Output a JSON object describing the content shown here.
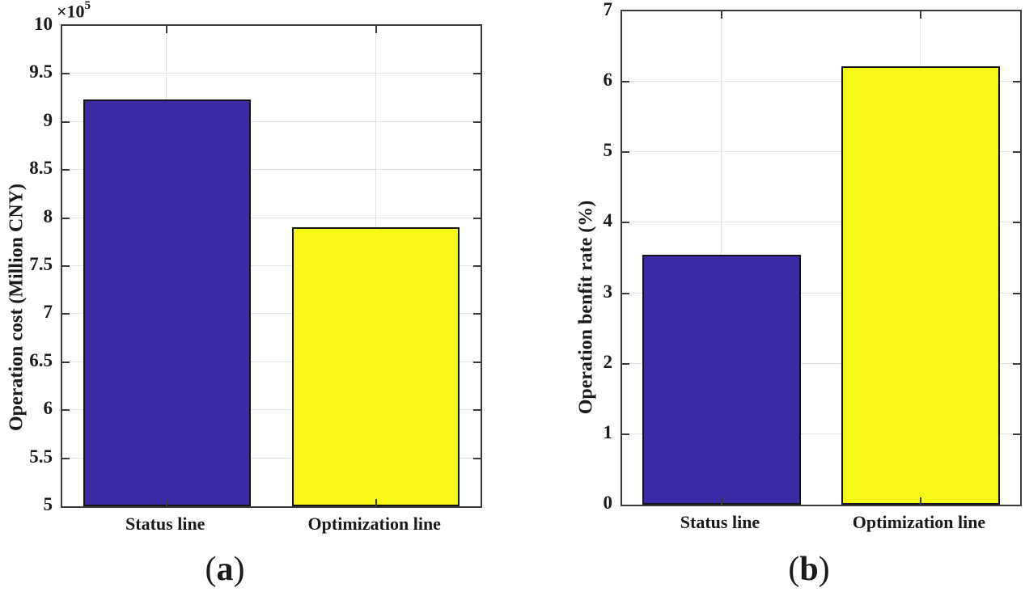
{
  "colors": {
    "bar_blue": "#3A2AA6",
    "bar_yellow": "#F5F716",
    "bar_edge": "#141414",
    "axis": "#3a3a3a",
    "grid": "#e3e3e3",
    "text": "#1a1a1a"
  },
  "chart_data": [
    {
      "type": "bar",
      "id": "a",
      "caption": {
        "open": "(",
        "letter": "a",
        "close": ")"
      },
      "ylabel": "Operation cost (Million CNY)",
      "axis_multiplier": {
        "base": "×10",
        "exponent": "5"
      },
      "categories": [
        "Status line",
        "Optimization line"
      ],
      "values": [
        923600,
        790000
      ],
      "bar_colors": [
        "#3A2AA6",
        "#F5F716"
      ],
      "ylim": [
        500000,
        1000000
      ],
      "yticks": [
        {
          "value": 500000,
          "label": "5"
        },
        {
          "value": 550000,
          "label": "5.5"
        },
        {
          "value": 600000,
          "label": "6"
        },
        {
          "value": 650000,
          "label": "6.5"
        },
        {
          "value": 700000,
          "label": "7"
        },
        {
          "value": 750000,
          "label": "7.5"
        },
        {
          "value": 800000,
          "label": "8"
        },
        {
          "value": 850000,
          "label": "8.5"
        },
        {
          "value": 900000,
          "label": "9"
        },
        {
          "value": 950000,
          "label": "9.5"
        },
        {
          "value": 1000000,
          "label": "10"
        }
      ],
      "bar_centers_frac": [
        0.25,
        0.75
      ],
      "bar_width_frac": 0.4,
      "grid": true,
      "legend": null
    },
    {
      "type": "bar",
      "id": "b",
      "caption": {
        "open": "(",
        "letter": "b",
        "close": ")"
      },
      "ylabel": "Operation benfit rate (%)",
      "axis_multiplier": null,
      "categories": [
        "Status line",
        "Optimization line"
      ],
      "values": [
        3.55,
        6.22
      ],
      "bar_colors": [
        "#3A2AA6",
        "#F5F716"
      ],
      "ylim": [
        0,
        7
      ],
      "yticks": [
        {
          "value": 0,
          "label": "0"
        },
        {
          "value": 1,
          "label": "1"
        },
        {
          "value": 2,
          "label": "2"
        },
        {
          "value": 3,
          "label": "3"
        },
        {
          "value": 4,
          "label": "4"
        },
        {
          "value": 5,
          "label": "5"
        },
        {
          "value": 6,
          "label": "6"
        },
        {
          "value": 7,
          "label": "7"
        }
      ],
      "bar_centers_frac": [
        0.25,
        0.75
      ],
      "bar_width_frac": 0.4,
      "grid": true,
      "legend": null
    }
  ]
}
